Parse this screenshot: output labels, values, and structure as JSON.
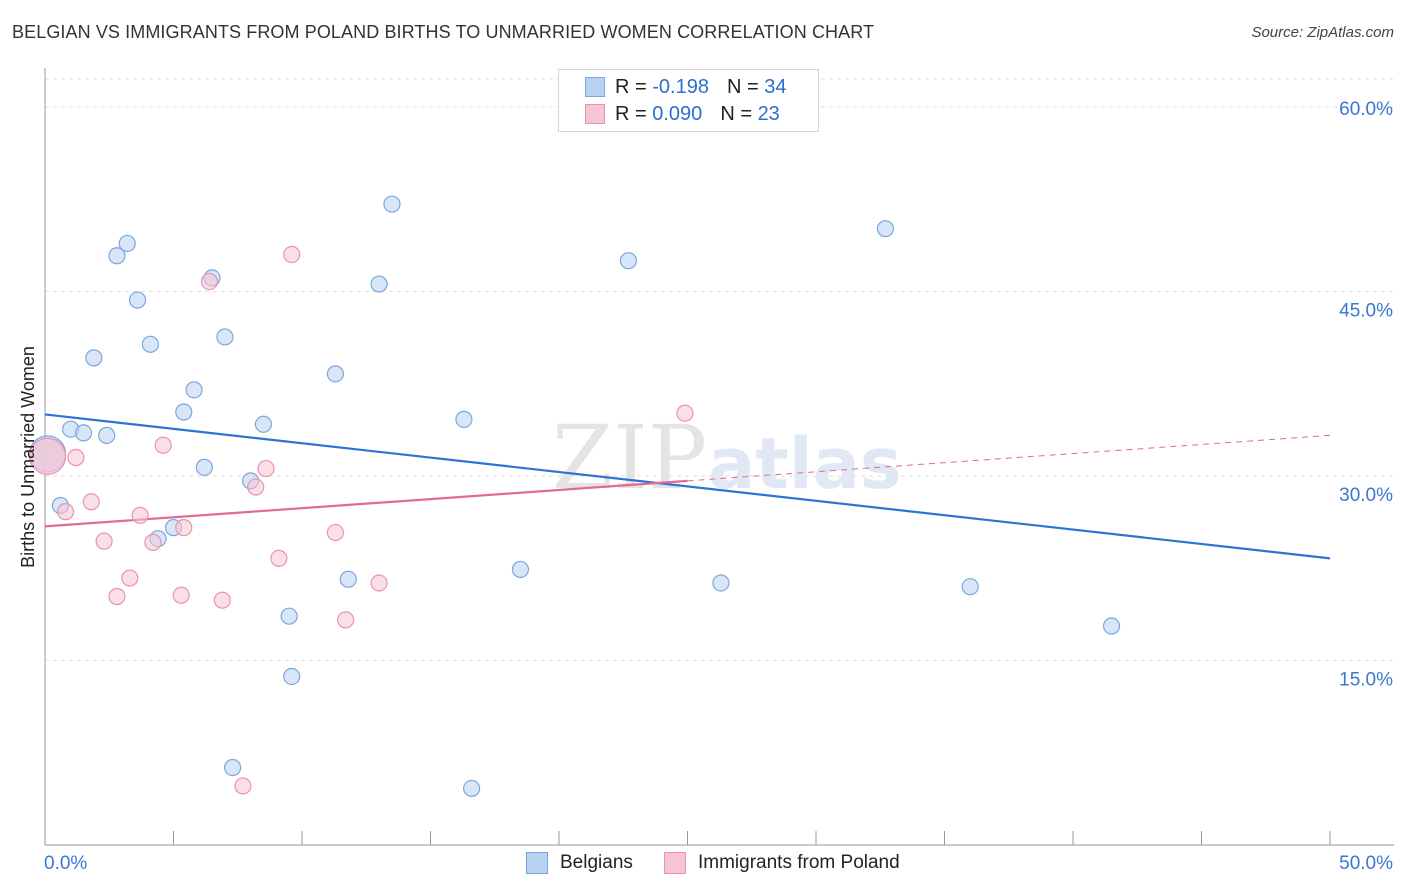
{
  "header": {
    "title": "BELGIAN VS IMMIGRANTS FROM POLAND BIRTHS TO UNMARRIED WOMEN CORRELATION CHART",
    "source": "Source: ZipAtlas.com"
  },
  "watermark": {
    "zip": "ZIP",
    "atlas": "atlas"
  },
  "legend": {
    "series": [
      {
        "r_label": "R =",
        "r_value": "-0.198",
        "n_label": "N =",
        "n_value": "34"
      },
      {
        "r_label": "R =",
        "r_value": "0.090",
        "n_label": "N =",
        "n_value": "23"
      }
    ]
  },
  "bottom_legend": {
    "belgians": "Belgians",
    "poland": "Immigrants from Poland"
  },
  "colors": {
    "belgians_fill": "#b8d2f3",
    "belgians_stroke": "#7aa6e0",
    "belgians_line": "#2b74d4",
    "poland_fill": "#f7c4d4",
    "poland_stroke": "#e893b0",
    "poland_line": "#e06a93",
    "axis_label": "#3a78cf",
    "grid": "#dddddd"
  },
  "chart_data": {
    "type": "scatter",
    "title": "BELGIAN VS IMMIGRANTS FROM POLAND BIRTHS TO UNMARRIED WOMEN CORRELATION CHART",
    "xlabel": "",
    "ylabel": "Births to Unmarried Women",
    "xlim": [
      0,
      50
    ],
    "ylim": [
      0,
      63
    ],
    "x_tick_labels": {
      "left": "0.0%",
      "right": "50.0%"
    },
    "y_ticks": [
      {
        "value": 15,
        "label": "15.0%"
      },
      {
        "value": 30,
        "label": "30.0%"
      },
      {
        "value": 45,
        "label": "45.0%"
      },
      {
        "value": 60,
        "label": "60.0%"
      }
    ],
    "x_minor_ticks": [
      5,
      10,
      15,
      20,
      25,
      30,
      35,
      40,
      45,
      50
    ],
    "series": [
      {
        "name": "Belgians",
        "r": -0.198,
        "n": 34,
        "trend": {
          "x0": 0,
          "y0": 35.0,
          "x1": 50,
          "y1": 23.3,
          "dashed_from": null
        },
        "points": [
          [
            0.1,
            31.8,
            "large"
          ],
          [
            0.6,
            27.6
          ],
          [
            1.0,
            33.8
          ],
          [
            1.5,
            33.5
          ],
          [
            1.9,
            39.6
          ],
          [
            2.4,
            33.3
          ],
          [
            2.8,
            47.9
          ],
          [
            3.2,
            48.9
          ],
          [
            3.6,
            44.3
          ],
          [
            4.1,
            40.7
          ],
          [
            4.4,
            24.9
          ],
          [
            5.0,
            25.8
          ],
          [
            5.4,
            35.2
          ],
          [
            5.8,
            37.0
          ],
          [
            6.2,
            30.7
          ],
          [
            6.5,
            46.1
          ],
          [
            7.0,
            41.3
          ],
          [
            7.3,
            6.3
          ],
          [
            8.0,
            29.6
          ],
          [
            8.5,
            34.2
          ],
          [
            9.5,
            18.6
          ],
          [
            9.6,
            13.7
          ],
          [
            11.3,
            38.3
          ],
          [
            11.8,
            21.6
          ],
          [
            13.0,
            45.6
          ],
          [
            13.5,
            52.1
          ],
          [
            16.3,
            34.6
          ],
          [
            16.6,
            4.6
          ],
          [
            18.5,
            22.4
          ],
          [
            22.7,
            47.5
          ],
          [
            26.3,
            21.3
          ],
          [
            32.7,
            50.1
          ],
          [
            36.0,
            21.0
          ],
          [
            41.5,
            17.8
          ]
        ]
      },
      {
        "name": "Immigrants from Poland",
        "r": 0.09,
        "n": 23,
        "trend": {
          "x0": 0,
          "y0": 25.9,
          "x1": 50,
          "y1": 33.3,
          "dashed_from": 25
        },
        "points": [
          [
            0.1,
            31.6,
            "large"
          ],
          [
            0.8,
            27.1
          ],
          [
            1.2,
            31.5
          ],
          [
            1.8,
            27.9
          ],
          [
            2.3,
            24.7
          ],
          [
            2.8,
            20.2
          ],
          [
            3.3,
            21.7
          ],
          [
            3.7,
            26.8
          ],
          [
            4.2,
            24.6
          ],
          [
            4.6,
            32.5
          ],
          [
            5.3,
            20.3
          ],
          [
            5.4,
            25.8
          ],
          [
            6.4,
            45.8
          ],
          [
            6.9,
            19.9
          ],
          [
            7.7,
            4.8
          ],
          [
            8.2,
            29.1
          ],
          [
            8.6,
            30.6
          ],
          [
            9.1,
            23.3
          ],
          [
            9.6,
            48.0
          ],
          [
            11.3,
            25.4
          ],
          [
            11.7,
            18.3
          ],
          [
            13.0,
            21.3
          ],
          [
            24.9,
            35.1
          ]
        ]
      }
    ]
  }
}
